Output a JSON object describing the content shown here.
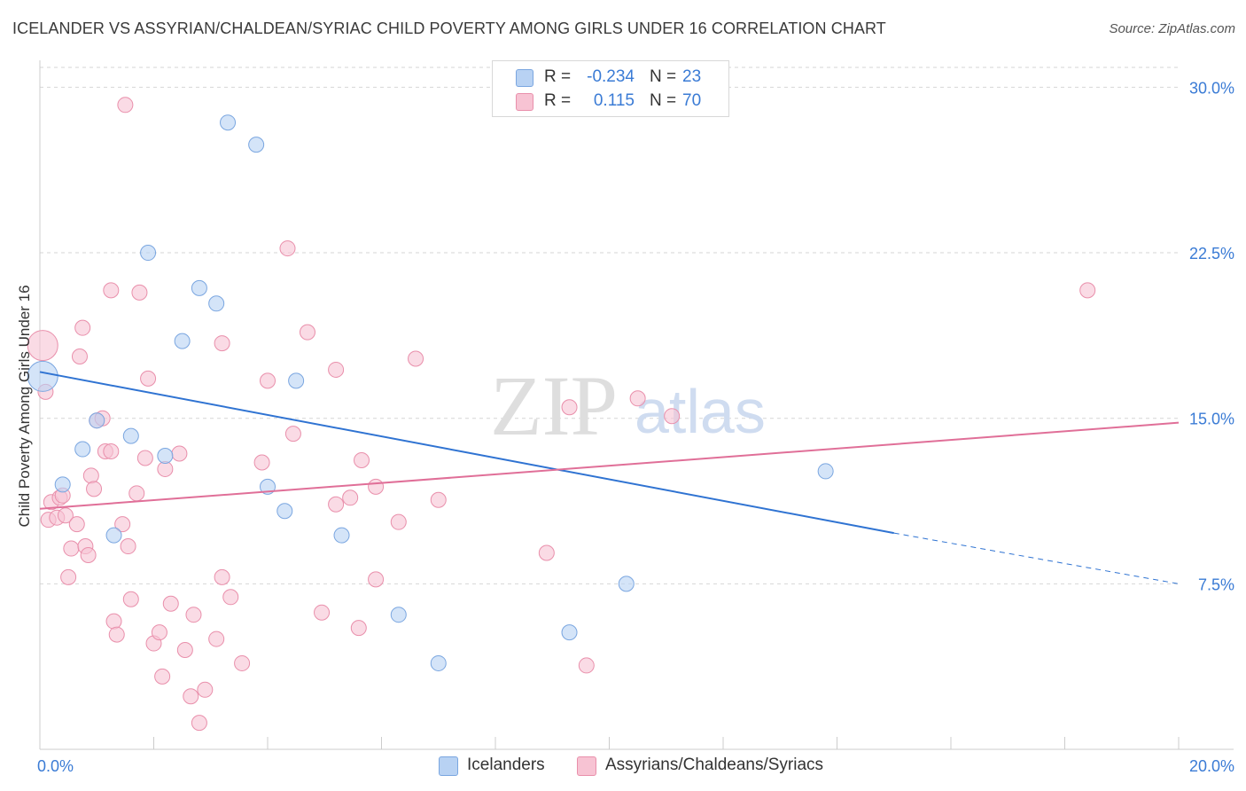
{
  "title": "ICELANDER VS ASSYRIAN/CHALDEAN/SYRIAC CHILD POVERTY AMONG GIRLS UNDER 16 CORRELATION CHART",
  "source": "Source: ZipAtlas.com",
  "watermark": {
    "zip": "ZIP",
    "atlas": "atlas"
  },
  "legend": {
    "r_label": "R =",
    "n_label": "N =",
    "series": [
      {
        "r": "-0.234",
        "n": "23"
      },
      {
        "r": "0.115",
        "n": "70"
      }
    ]
  },
  "bottom_legend": [
    "Icelanders",
    "Assyrians/Chaldeans/Syriacs"
  ],
  "colors": {
    "blue_fill": "#b8d2f3",
    "blue_stroke": "#7aa6e0",
    "blue_line": "#2f73d2",
    "pink_fill": "#f7c3d3",
    "pink_stroke": "#e98fab",
    "pink_line": "#e06f98",
    "axis_text": "#3a7bd5",
    "grid": "#d6d6d6"
  },
  "chart_data": {
    "type": "scatter",
    "title": "ICELANDER VS ASSYRIAN/CHALDEAN/SYRIAC CHILD POVERTY AMONG GIRLS UNDER 16 CORRELATION CHART",
    "xlabel": "",
    "ylabel": "Child Poverty Among Girls Under 16",
    "xlim": [
      0,
      20
    ],
    "ylim": [
      0,
      30.9
    ],
    "x_tick_labels": [
      "0.0%",
      "20.0%"
    ],
    "y_ticks": [
      7.5,
      15.0,
      22.5,
      30.0
    ],
    "y_tick_labels": [
      "7.5%",
      "15.0%",
      "22.5%",
      "30.0%"
    ],
    "grid": "horizontal dashed",
    "legend_position": "top-center",
    "series": [
      {
        "name": "Icelanders",
        "r": -0.234,
        "n": 23,
        "points": [
          {
            "x": 0.05,
            "y": 16.9,
            "big": true
          },
          {
            "x": 0.4,
            "y": 12.0
          },
          {
            "x": 0.75,
            "y": 13.6
          },
          {
            "x": 1.0,
            "y": 14.9
          },
          {
            "x": 1.3,
            "y": 9.7
          },
          {
            "x": 1.6,
            "y": 14.2
          },
          {
            "x": 1.9,
            "y": 22.5
          },
          {
            "x": 2.2,
            "y": 13.3
          },
          {
            "x": 2.5,
            "y": 18.5
          },
          {
            "x": 2.8,
            "y": 20.9
          },
          {
            "x": 3.1,
            "y": 20.2
          },
          {
            "x": 3.3,
            "y": 28.4
          },
          {
            "x": 3.8,
            "y": 27.4
          },
          {
            "x": 4.0,
            "y": 11.9
          },
          {
            "x": 4.3,
            "y": 10.8
          },
          {
            "x": 4.5,
            "y": 16.7
          },
          {
            "x": 5.3,
            "y": 9.7
          },
          {
            "x": 6.3,
            "y": 6.1
          },
          {
            "x": 7.0,
            "y": 3.9
          },
          {
            "x": 8.8,
            "y": 30.4
          },
          {
            "x": 9.3,
            "y": 5.3
          },
          {
            "x": 10.3,
            "y": 7.5
          },
          {
            "x": 13.8,
            "y": 12.6
          }
        ],
        "trend": {
          "x0": 0.0,
          "y0": 17.1,
          "x1": 15.0,
          "y1": 9.8,
          "dash_to_x": 20.0,
          "dash_to_y": 7.5
        }
      },
      {
        "name": "Assyrians/Chaldeans/Syriacs",
        "r": 0.115,
        "n": 70,
        "points": [
          {
            "x": 0.05,
            "y": 18.3,
            "big": true
          },
          {
            "x": 0.1,
            "y": 16.2
          },
          {
            "x": 0.15,
            "y": 10.4
          },
          {
            "x": 0.2,
            "y": 11.2
          },
          {
            "x": 0.3,
            "y": 10.5
          },
          {
            "x": 0.35,
            "y": 11.4
          },
          {
            "x": 0.4,
            "y": 11.5
          },
          {
            "x": 0.45,
            "y": 10.6
          },
          {
            "x": 0.5,
            "y": 7.8
          },
          {
            "x": 0.55,
            "y": 9.1
          },
          {
            "x": 0.65,
            "y": 10.2
          },
          {
            "x": 0.7,
            "y": 17.8
          },
          {
            "x": 0.75,
            "y": 19.1
          },
          {
            "x": 0.8,
            "y": 9.2
          },
          {
            "x": 0.85,
            "y": 8.8
          },
          {
            "x": 0.9,
            "y": 12.4
          },
          {
            "x": 0.95,
            "y": 11.8
          },
          {
            "x": 1.0,
            "y": 14.9
          },
          {
            "x": 1.1,
            "y": 15.0
          },
          {
            "x": 1.15,
            "y": 13.5
          },
          {
            "x": 1.25,
            "y": 13.5
          },
          {
            "x": 1.25,
            "y": 20.8
          },
          {
            "x": 1.3,
            "y": 5.8
          },
          {
            "x": 1.35,
            "y": 5.2
          },
          {
            "x": 1.45,
            "y": 10.2
          },
          {
            "x": 1.5,
            "y": 29.2
          },
          {
            "x": 1.55,
            "y": 9.2
          },
          {
            "x": 1.6,
            "y": 6.8
          },
          {
            "x": 1.7,
            "y": 11.6
          },
          {
            "x": 1.75,
            "y": 20.7
          },
          {
            "x": 1.85,
            "y": 13.2
          },
          {
            "x": 1.9,
            "y": 16.8
          },
          {
            "x": 2.0,
            "y": 4.8
          },
          {
            "x": 2.1,
            "y": 5.3
          },
          {
            "x": 2.15,
            "y": 3.3
          },
          {
            "x": 2.2,
            "y": 12.7
          },
          {
            "x": 2.3,
            "y": 6.6
          },
          {
            "x": 2.45,
            "y": 13.4
          },
          {
            "x": 2.55,
            "y": 4.5
          },
          {
            "x": 2.65,
            "y": 2.4
          },
          {
            "x": 2.7,
            "y": 6.1
          },
          {
            "x": 2.8,
            "y": 1.2
          },
          {
            "x": 2.9,
            "y": 2.7
          },
          {
            "x": 3.1,
            "y": 5.0
          },
          {
            "x": 3.2,
            "y": 7.8
          },
          {
            "x": 3.2,
            "y": 18.4
          },
          {
            "x": 3.35,
            "y": 6.9
          },
          {
            "x": 3.55,
            "y": 3.9
          },
          {
            "x": 3.9,
            "y": 13.0
          },
          {
            "x": 4.0,
            "y": 16.7
          },
          {
            "x": 4.35,
            "y": 22.7
          },
          {
            "x": 4.45,
            "y": 14.3
          },
          {
            "x": 4.7,
            "y": 18.9
          },
          {
            "x": 4.95,
            "y": 6.2
          },
          {
            "x": 5.2,
            "y": 11.1
          },
          {
            "x": 5.2,
            "y": 17.2
          },
          {
            "x": 5.45,
            "y": 11.4
          },
          {
            "x": 5.6,
            "y": 5.5
          },
          {
            "x": 5.65,
            "y": 13.1
          },
          {
            "x": 5.9,
            "y": 7.7
          },
          {
            "x": 5.9,
            "y": 11.9
          },
          {
            "x": 6.3,
            "y": 10.3
          },
          {
            "x": 6.6,
            "y": 17.7
          },
          {
            "x": 7.0,
            "y": 11.3
          },
          {
            "x": 8.9,
            "y": 8.9
          },
          {
            "x": 9.3,
            "y": 15.5
          },
          {
            "x": 9.6,
            "y": 3.8
          },
          {
            "x": 10.5,
            "y": 15.9
          },
          {
            "x": 11.1,
            "y": 15.1
          },
          {
            "x": 18.4,
            "y": 20.8
          }
        ],
        "trend": {
          "x0": 0.0,
          "y0": 10.9,
          "x1": 20.0,
          "y1": 14.8
        }
      }
    ]
  }
}
